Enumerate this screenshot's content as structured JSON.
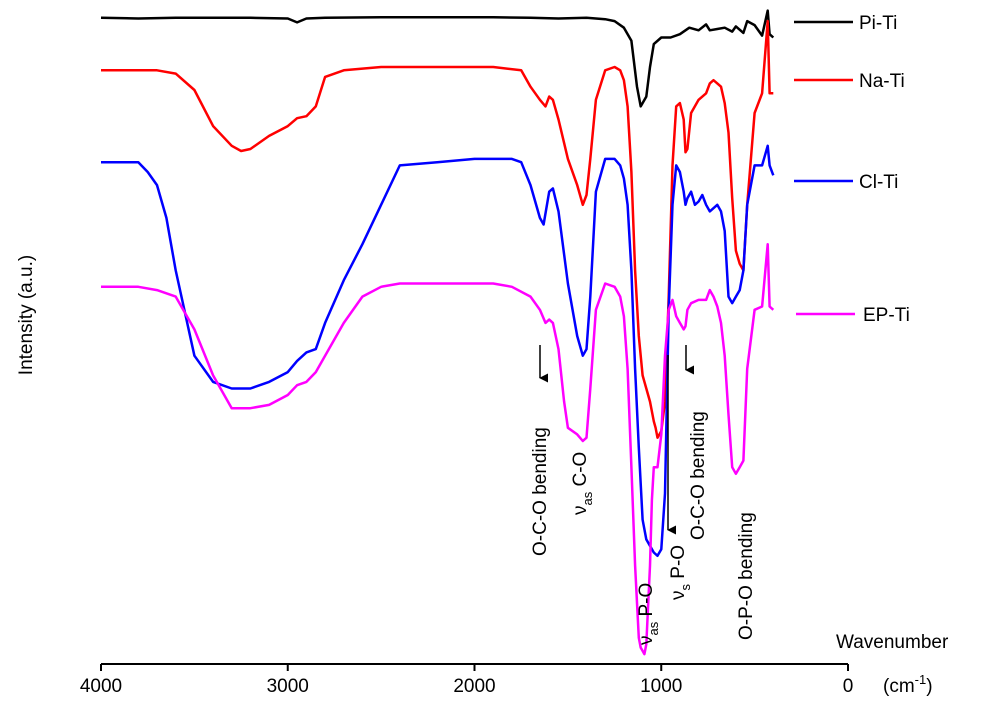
{
  "chart_data": {
    "type": "line",
    "title": "",
    "xlabel": "Wavenumber",
    "xlabel_unit_base": "(cm",
    "xlabel_unit_exp": "-1",
    "xlabel_unit_close": ")",
    "ylabel": "Intensity (a.u.)",
    "xlim": [
      4000,
      0
    ],
    "x_reversed": true,
    "x_ticks": [
      4000,
      3000,
      2000,
      1000,
      0
    ],
    "x_tick_labels": [
      "4000",
      "3000",
      "2000",
      "1000",
      "0"
    ],
    "y_ticks_visible": false,
    "ylim": [
      0,
      1
    ],
    "legend_position": "right",
    "series": [
      {
        "name": "Pi-Ti",
        "color": "#000000",
        "x": [
          4000,
          3800,
          3600,
          3400,
          3200,
          3000,
          2950,
          2900,
          2800,
          2500,
          2200,
          1900,
          1700,
          1550,
          1400,
          1300,
          1250,
          1200,
          1160,
          1130,
          1110,
          1080,
          1060,
          1040,
          1000,
          950,
          900,
          850,
          800,
          760,
          740,
          700,
          660,
          620,
          600,
          560,
          540,
          500,
          460,
          430,
          420,
          400
        ],
        "y": [
          0.985,
          0.984,
          0.985,
          0.985,
          0.985,
          0.984,
          0.978,
          0.984,
          0.985,
          0.986,
          0.986,
          0.986,
          0.985,
          0.984,
          0.985,
          0.983,
          0.98,
          0.97,
          0.95,
          0.88,
          0.85,
          0.865,
          0.91,
          0.945,
          0.955,
          0.955,
          0.96,
          0.97,
          0.966,
          0.975,
          0.966,
          0.968,
          0.97,
          0.964,
          0.972,
          0.962,
          0.98,
          0.974,
          0.958,
          0.996,
          0.96,
          0.955
        ]
      },
      {
        "name": "Na-Ti",
        "color": "#ff0000",
        "x": [
          4000,
          3900,
          3800,
          3700,
          3600,
          3500,
          3400,
          3300,
          3250,
          3200,
          3100,
          3000,
          2950,
          2900,
          2850,
          2800,
          2700,
          2500,
          2300,
          2100,
          1900,
          1750,
          1700,
          1650,
          1620,
          1600,
          1580,
          1550,
          1500,
          1450,
          1420,
          1400,
          1380,
          1350,
          1300,
          1250,
          1220,
          1200,
          1180,
          1160,
          1140,
          1120,
          1100,
          1080,
          1060,
          1040,
          1030,
          1020,
          1000,
          980,
          960,
          940,
          920,
          900,
          880,
          870,
          860,
          840,
          800,
          760,
          740,
          720,
          700,
          680,
          660,
          640,
          620,
          600,
          580,
          560,
          540,
          500,
          460,
          430,
          420,
          400
        ],
        "y": [
          0.905,
          0.905,
          0.905,
          0.905,
          0.9,
          0.875,
          0.82,
          0.79,
          0.782,
          0.785,
          0.805,
          0.82,
          0.832,
          0.835,
          0.85,
          0.895,
          0.905,
          0.91,
          0.91,
          0.91,
          0.91,
          0.905,
          0.88,
          0.86,
          0.85,
          0.865,
          0.86,
          0.83,
          0.77,
          0.73,
          0.7,
          0.715,
          0.77,
          0.86,
          0.905,
          0.91,
          0.905,
          0.89,
          0.85,
          0.75,
          0.6,
          0.5,
          0.44,
          0.42,
          0.4,
          0.37,
          0.36,
          0.345,
          0.355,
          0.4,
          0.56,
          0.76,
          0.85,
          0.855,
          0.83,
          0.78,
          0.785,
          0.84,
          0.86,
          0.87,
          0.885,
          0.89,
          0.885,
          0.88,
          0.855,
          0.81,
          0.71,
          0.63,
          0.61,
          0.6,
          0.7,
          0.84,
          0.87,
          0.98,
          0.87,
          0.87
        ]
      },
      {
        "name": "Cl-Ti",
        "color": "#0000ff",
        "x": [
          4000,
          3900,
          3800,
          3750,
          3700,
          3650,
          3600,
          3500,
          3400,
          3300,
          3200,
          3100,
          3000,
          2950,
          2900,
          2850,
          2800,
          2700,
          2600,
          2500,
          2400,
          2200,
          2000,
          1900,
          1800,
          1750,
          1700,
          1650,
          1630,
          1600,
          1580,
          1550,
          1500,
          1450,
          1420,
          1400,
          1380,
          1350,
          1300,
          1250,
          1220,
          1200,
          1180,
          1160,
          1140,
          1120,
          1100,
          1080,
          1060,
          1040,
          1020,
          1000,
          980,
          960,
          940,
          920,
          900,
          880,
          870,
          860,
          840,
          820,
          800,
          780,
          760,
          740,
          700,
          680,
          660,
          640,
          620,
          600,
          580,
          560,
          540,
          500,
          460,
          430,
          420,
          400
        ],
        "y": [
          0.765,
          0.765,
          0.765,
          0.75,
          0.73,
          0.68,
          0.6,
          0.47,
          0.43,
          0.42,
          0.42,
          0.43,
          0.445,
          0.462,
          0.475,
          0.48,
          0.52,
          0.585,
          0.64,
          0.7,
          0.76,
          0.765,
          0.77,
          0.77,
          0.77,
          0.765,
          0.73,
          0.68,
          0.67,
          0.72,
          0.725,
          0.69,
          0.58,
          0.5,
          0.47,
          0.48,
          0.56,
          0.72,
          0.77,
          0.77,
          0.76,
          0.74,
          0.7,
          0.6,
          0.45,
          0.33,
          0.22,
          0.19,
          0.18,
          0.17,
          0.165,
          0.175,
          0.26,
          0.54,
          0.7,
          0.76,
          0.75,
          0.72,
          0.7,
          0.71,
          0.72,
          0.7,
          0.705,
          0.715,
          0.7,
          0.69,
          0.7,
          0.69,
          0.66,
          0.56,
          0.55,
          0.56,
          0.57,
          0.6,
          0.7,
          0.76,
          0.76,
          0.79,
          0.76,
          0.745
        ]
      },
      {
        "name": "EP-Ti",
        "color": "#ff00ff",
        "x": [
          4000,
          3900,
          3800,
          3700,
          3600,
          3500,
          3400,
          3300,
          3200,
          3100,
          3000,
          2950,
          2900,
          2850,
          2800,
          2700,
          2600,
          2500,
          2400,
          2200,
          2000,
          1900,
          1800,
          1700,
          1650,
          1620,
          1600,
          1580,
          1550,
          1520,
          1500,
          1450,
          1420,
          1400,
          1380,
          1350,
          1300,
          1250,
          1220,
          1200,
          1180,
          1160,
          1140,
          1120,
          1110,
          1100,
          1090,
          1080,
          1060,
          1050,
          1040,
          1020,
          1000,
          980,
          960,
          940,
          920,
          900,
          880,
          870,
          860,
          840,
          800,
          760,
          740,
          720,
          700,
          680,
          660,
          640,
          620,
          600,
          580,
          560,
          540,
          500,
          460,
          430,
          420,
          400
        ],
        "y": [
          0.575,
          0.575,
          0.575,
          0.57,
          0.56,
          0.51,
          0.44,
          0.39,
          0.39,
          0.395,
          0.41,
          0.425,
          0.43,
          0.445,
          0.47,
          0.52,
          0.56,
          0.575,
          0.58,
          0.58,
          0.58,
          0.58,
          0.575,
          0.56,
          0.54,
          0.52,
          0.525,
          0.52,
          0.48,
          0.4,
          0.36,
          0.35,
          0.34,
          0.345,
          0.42,
          0.54,
          0.58,
          0.575,
          0.56,
          0.53,
          0.45,
          0.3,
          0.15,
          0.04,
          0.025,
          0.02,
          0.015,
          0.03,
          0.15,
          0.25,
          0.3,
          0.3,
          0.35,
          0.47,
          0.54,
          0.555,
          0.53,
          0.52,
          0.51,
          0.515,
          0.54,
          0.55,
          0.555,
          0.555,
          0.57,
          0.56,
          0.545,
          0.52,
          0.47,
          0.38,
          0.3,
          0.29,
          0.3,
          0.31,
          0.45,
          0.54,
          0.545,
          0.64,
          0.545,
          0.54
        ]
      }
    ],
    "annotations": [
      {
        "id": "ocoband1",
        "label": "O-C-O bending",
        "arrow": true
      },
      {
        "id": "nuasco",
        "label_sym": "ν",
        "label_sub": "as",
        "label_rest": " C-O",
        "arrow": false
      },
      {
        "id": "nuaspo",
        "label_sym": "ν",
        "label_sub": "as",
        "label_rest": " P-O",
        "arrow": false
      },
      {
        "id": "nuspo",
        "label_sym": "ν",
        "label_sub": "s",
        "label_rest": " P-O",
        "arrow": true
      },
      {
        "id": "ocoband2",
        "label": "O-C-O bending",
        "arrow": true
      },
      {
        "id": "opoband",
        "label": "O-P-O bending",
        "arrow": false
      }
    ]
  }
}
